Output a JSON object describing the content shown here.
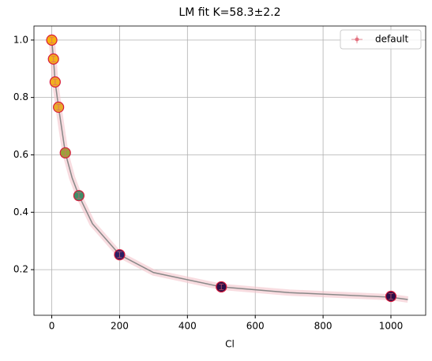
{
  "chart_data": {
    "type": "scatter",
    "title": "LM fit K=58.3±2.2",
    "xlabel": "Cl",
    "series": [
      {
        "name": "default",
        "color": "#e06070",
        "x": [
          0,
          5,
          10,
          20,
          40,
          80,
          200,
          500,
          1000
        ],
        "values": [
          1.0,
          0.934,
          0.854,
          0.766,
          0.607,
          0.458,
          0.252,
          0.14,
          0.107
        ],
        "yerr": [
          0.01,
          0.01,
          0.01,
          0.01,
          0.01,
          0.01,
          0.01,
          0.01,
          0.01
        ],
        "colors": [
          "#f6b20e",
          "#f2b318",
          "#f0b020",
          "#e8ac28",
          "#9aa238",
          "#3f8e68",
          "#2b1f63",
          "#2c0f47",
          "#2c0f47"
        ]
      }
    ],
    "fit": {
      "color": "#888888",
      "band_color": "#f4c4cc",
      "x": [
        0,
        5,
        10,
        20,
        40,
        60,
        80,
        120,
        200,
        300,
        500,
        700,
        1000,
        1050
      ],
      "values": [
        1.0,
        0.934,
        0.854,
        0.766,
        0.607,
        0.52,
        0.458,
        0.36,
        0.252,
        0.19,
        0.14,
        0.12,
        0.104,
        0.096
      ]
    },
    "xlim": [
      -52.5,
      1102.5
    ],
    "ylim": [
      0.041,
      1.049
    ],
    "xticks": [
      0,
      200,
      400,
      600,
      800,
      1000
    ],
    "yticks": [
      0.2,
      0.4,
      0.6,
      0.8,
      {
        "value": 1,
        "label": "1.0"
      }
    ],
    "grid": true,
    "legend": "upper right"
  }
}
